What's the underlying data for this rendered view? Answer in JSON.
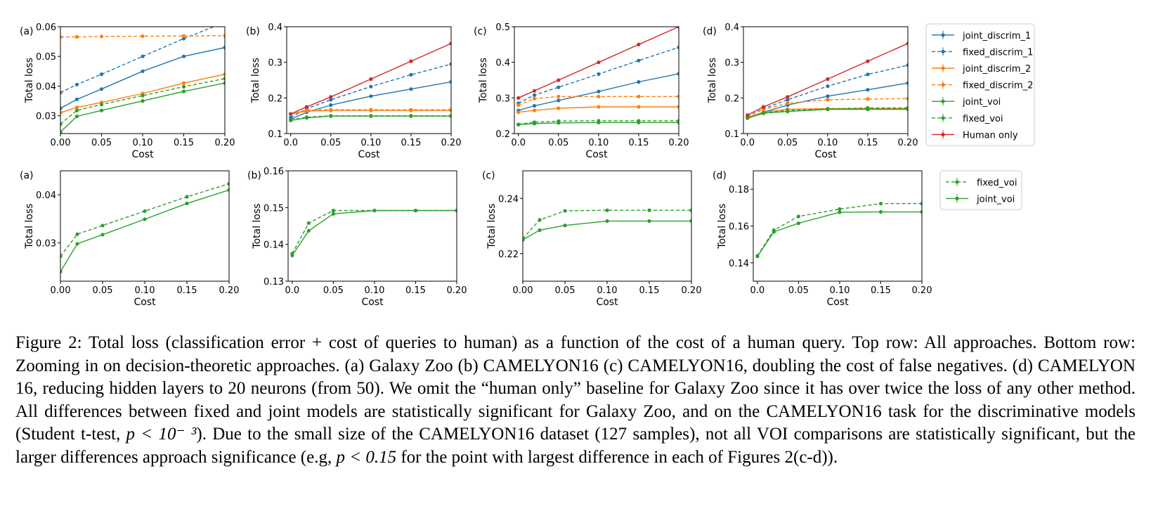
{
  "figure": {
    "colors": {
      "joint_discrim_1": "#1f77b4",
      "fixed_discrim_1": "#1f77b4",
      "joint_discrim_2": "#ff7f0e",
      "fixed_discrim_2": "#ff7f0e",
      "joint_voi": "#2ca02c",
      "fixed_voi": "#2ca02c",
      "human_only": "#d62728"
    },
    "top_legend": [
      {
        "key": "joint_discrim_1",
        "label": "joint_discrim_1",
        "dashed": false
      },
      {
        "key": "fixed_discrim_1",
        "label": "fixed_discrim_1",
        "dashed": true
      },
      {
        "key": "joint_discrim_2",
        "label": "joint_discrim_2",
        "dashed": false
      },
      {
        "key": "fixed_discrim_2",
        "label": "fixed_discrim_2",
        "dashed": true
      },
      {
        "key": "joint_voi",
        "label": "joint_voi",
        "dashed": false
      },
      {
        "key": "fixed_voi",
        "label": "fixed_voi",
        "dashed": true
      },
      {
        "key": "human_only",
        "label": "Human only",
        "dashed": false
      }
    ],
    "bottom_legend": [
      {
        "key": "fixed_voi",
        "label": "fixed_voi",
        "dashed": true
      },
      {
        "key": "joint_voi",
        "label": "joint_voi",
        "dashed": false
      }
    ]
  },
  "chart_data": [
    {
      "type": "line",
      "panel": "(a)",
      "row": "top",
      "xlabel": "Cost",
      "ylabel": "Total loss",
      "xlim": [
        0.0,
        0.2
      ],
      "ylim": [
        0.024,
        0.06
      ],
      "xticks": [
        "0.00",
        "0.05",
        "0.10",
        "0.15",
        "0.20"
      ],
      "yticks": [
        "0.03",
        "0.04",
        "0.05",
        "0.06"
      ],
      "x": [
        0.0,
        0.02,
        0.05,
        0.1,
        0.15,
        0.2
      ],
      "series": [
        {
          "key": "joint_discrim_1",
          "dashed": false,
          "values": [
            0.0325,
            0.0355,
            0.039,
            0.045,
            0.05,
            0.053
          ]
        },
        {
          "key": "fixed_discrim_1",
          "dashed": true,
          "values": [
            0.0378,
            0.0405,
            0.044,
            0.05,
            0.056,
            0.0615
          ]
        },
        {
          "key": "joint_discrim_2",
          "dashed": false,
          "values": [
            0.031,
            0.0328,
            0.0345,
            0.0375,
            0.041,
            0.044
          ]
        },
        {
          "key": "fixed_discrim_2",
          "dashed": true,
          "values": [
            0.0565,
            0.0566,
            0.0567,
            0.0568,
            0.0569,
            0.057
          ]
        },
        {
          "key": "joint_voi",
          "dashed": false,
          "values": [
            0.0245,
            0.0298,
            0.0318,
            0.035,
            0.0382,
            0.041
          ]
        },
        {
          "key": "fixed_voi",
          "dashed": true,
          "values": [
            0.0272,
            0.0318,
            0.0338,
            0.0368,
            0.0398,
            0.0425
          ]
        }
      ]
    },
    {
      "type": "line",
      "panel": "(b)",
      "row": "top",
      "xlabel": "Cost",
      "ylabel": "Total loss",
      "xlim": [
        -0.005,
        0.2
      ],
      "ylim": [
        0.1,
        0.4
      ],
      "xticks": [
        "0.0",
        "0.05",
        "0.10",
        "0.15",
        "0.20"
      ],
      "yticks": [
        "0.1",
        "0.2",
        "0.3",
        "0.4"
      ],
      "x": [
        0.0,
        0.02,
        0.05,
        0.1,
        0.15,
        0.2
      ],
      "series": [
        {
          "key": "joint_discrim_1",
          "dashed": false,
          "values": [
            0.14,
            0.16,
            0.18,
            0.205,
            0.225,
            0.245
          ]
        },
        {
          "key": "fixed_discrim_1",
          "dashed": true,
          "values": [
            0.145,
            0.17,
            0.195,
            0.232,
            0.265,
            0.295
          ]
        },
        {
          "key": "joint_discrim_2",
          "dashed": false,
          "values": [
            0.155,
            0.163,
            0.165,
            0.165,
            0.165,
            0.165
          ]
        },
        {
          "key": "fixed_discrim_2",
          "dashed": true,
          "values": [
            0.155,
            0.166,
            0.167,
            0.167,
            0.167,
            0.167
          ]
        },
        {
          "key": "joint_voi",
          "dashed": false,
          "values": [
            0.137,
            0.144,
            0.149,
            0.149,
            0.149,
            0.149
          ]
        },
        {
          "key": "fixed_voi",
          "dashed": true,
          "values": [
            0.138,
            0.146,
            0.15,
            0.15,
            0.15,
            0.15
          ]
        },
        {
          "key": "human_only",
          "dashed": false,
          "values": [
            0.155,
            0.175,
            0.203,
            0.253,
            0.303,
            0.353
          ]
        }
      ]
    },
    {
      "type": "line",
      "panel": "(c)",
      "row": "top",
      "xlabel": "Cost",
      "ylabel": "Total loss",
      "xlim": [
        -0.005,
        0.2
      ],
      "ylim": [
        0.2,
        0.5
      ],
      "xticks": [
        "0.0",
        "0.05",
        "0.10",
        "0.15",
        "0.20"
      ],
      "yticks": [
        "0.2",
        "0.3",
        "0.4",
        "0.5"
      ],
      "x": [
        0.0,
        0.02,
        0.05,
        0.1,
        0.15,
        0.2
      ],
      "series": [
        {
          "key": "joint_discrim_1",
          "dashed": false,
          "values": [
            0.265,
            0.278,
            0.293,
            0.318,
            0.345,
            0.368
          ]
        },
        {
          "key": "fixed_discrim_1",
          "dashed": true,
          "values": [
            0.285,
            0.308,
            0.33,
            0.367,
            0.405,
            0.442
          ]
        },
        {
          "key": "joint_discrim_2",
          "dashed": false,
          "values": [
            0.26,
            0.265,
            0.271,
            0.275,
            0.275,
            0.275
          ]
        },
        {
          "key": "fixed_discrim_2",
          "dashed": true,
          "values": [
            0.28,
            0.298,
            0.304,
            0.304,
            0.304,
            0.304
          ]
        },
        {
          "key": "joint_voi",
          "dashed": false,
          "values": [
            0.225,
            0.228,
            0.23,
            0.231,
            0.231,
            0.231
          ]
        },
        {
          "key": "fixed_voi",
          "dashed": true,
          "values": [
            0.226,
            0.232,
            0.235,
            0.236,
            0.236,
            0.236
          ]
        },
        {
          "key": "human_only",
          "dashed": false,
          "values": [
            0.3,
            0.32,
            0.35,
            0.4,
            0.45,
            0.5
          ]
        }
      ]
    },
    {
      "type": "line",
      "panel": "(d)",
      "row": "top",
      "xlabel": "Cost",
      "ylabel": "Total loss",
      "xlim": [
        -0.005,
        0.2
      ],
      "ylim": [
        0.1,
        0.4
      ],
      "xticks": [
        "0.0",
        "0.05",
        "0.10",
        "0.15",
        "0.20"
      ],
      "yticks": [
        "0.1",
        "0.2",
        "0.3",
        "0.4"
      ],
      "x": [
        0.0,
        0.02,
        0.05,
        0.1,
        0.15,
        0.2
      ],
      "series": [
        {
          "key": "joint_discrim_1",
          "dashed": false,
          "values": [
            0.145,
            0.16,
            0.18,
            0.205,
            0.223,
            0.242
          ]
        },
        {
          "key": "fixed_discrim_1",
          "dashed": true,
          "values": [
            0.148,
            0.17,
            0.195,
            0.233,
            0.266,
            0.292
          ]
        },
        {
          "key": "joint_discrim_2",
          "dashed": false,
          "values": [
            0.145,
            0.16,
            0.168,
            0.17,
            0.17,
            0.17
          ]
        },
        {
          "key": "fixed_discrim_2",
          "dashed": true,
          "values": [
            0.148,
            0.168,
            0.185,
            0.195,
            0.197,
            0.198
          ]
        },
        {
          "key": "joint_voi",
          "dashed": false,
          "values": [
            0.143,
            0.157,
            0.162,
            0.168,
            0.168,
            0.168
          ]
        },
        {
          "key": "fixed_voi",
          "dashed": true,
          "values": [
            0.144,
            0.158,
            0.165,
            0.169,
            0.172,
            0.172
          ]
        },
        {
          "key": "human_only",
          "dashed": false,
          "values": [
            0.152,
            0.175,
            0.203,
            0.253,
            0.303,
            0.353
          ]
        }
      ]
    },
    {
      "type": "line",
      "panel": "(a)",
      "row": "bottom",
      "xlabel": "Cost",
      "ylabel": "Total loss",
      "xlim": [
        0.0,
        0.2
      ],
      "ylim": [
        0.022,
        0.045
      ],
      "xticks": [
        "0.00",
        "0.05",
        "0.10",
        "0.15",
        "0.20"
      ],
      "yticks": [
        "0.03",
        "0.04"
      ],
      "x": [
        0.0,
        0.02,
        0.05,
        0.1,
        0.15,
        0.2
      ],
      "series": [
        {
          "key": "fixed_voi",
          "dashed": true,
          "values": [
            0.0272,
            0.0318,
            0.0336,
            0.0366,
            0.0396,
            0.0423
          ]
        },
        {
          "key": "joint_voi",
          "dashed": false,
          "values": [
            0.024,
            0.0298,
            0.0317,
            0.0349,
            0.0382,
            0.041
          ]
        }
      ]
    },
    {
      "type": "line",
      "panel": "(b)",
      "row": "bottom",
      "xlabel": "Cost",
      "ylabel": "Total loss",
      "xlim": [
        -0.005,
        0.2
      ],
      "ylim": [
        0.13,
        0.16
      ],
      "xticks": [
        "0.0",
        "0.05",
        "0.10",
        "0.15",
        "0.20"
      ],
      "yticks": [
        "0.13",
        "0.14",
        "0.15",
        "0.16"
      ],
      "x": [
        0.0,
        0.02,
        0.05,
        0.1,
        0.15,
        0.2
      ],
      "series": [
        {
          "key": "fixed_voi",
          "dashed": true,
          "values": [
            0.1375,
            0.1458,
            0.1492,
            0.1492,
            0.1492,
            0.1492
          ]
        },
        {
          "key": "joint_voi",
          "dashed": false,
          "values": [
            0.137,
            0.1437,
            0.1483,
            0.1492,
            0.1492,
            0.1492
          ]
        }
      ]
    },
    {
      "type": "line",
      "panel": "(c)",
      "row": "bottom",
      "xlabel": "Cost",
      "ylabel": "Total loss",
      "xlim": [
        0.0,
        0.2
      ],
      "ylim": [
        0.21,
        0.25
      ],
      "xticks": [
        "0.00",
        "0.05",
        "0.10",
        "0.15",
        "0.20"
      ],
      "yticks": [
        "0.22",
        "0.24"
      ],
      "x": [
        0.0,
        0.02,
        0.05,
        0.1,
        0.15,
        0.2
      ],
      "series": [
        {
          "key": "fixed_voi",
          "dashed": true,
          "values": [
            0.2255,
            0.2322,
            0.2355,
            0.2357,
            0.2357,
            0.2357
          ]
        },
        {
          "key": "joint_voi",
          "dashed": false,
          "values": [
            0.225,
            0.2285,
            0.2302,
            0.2318,
            0.2318,
            0.2318
          ]
        }
      ]
    },
    {
      "type": "line",
      "panel": "(d)",
      "row": "bottom",
      "xlabel": "Cost",
      "ylabel": "Total loss",
      "xlim": [
        -0.005,
        0.2
      ],
      "ylim": [
        0.13,
        0.19
      ],
      "xticks": [
        "0.0",
        "0.05",
        "0.10",
        "0.15",
        "0.20"
      ],
      "yticks": [
        "0.14",
        "0.16",
        "0.18"
      ],
      "x": [
        0.0,
        0.02,
        0.05,
        0.1,
        0.15,
        0.2
      ],
      "series": [
        {
          "key": "fixed_voi",
          "dashed": true,
          "values": [
            0.1438,
            0.1578,
            0.1652,
            0.1692,
            0.1722,
            0.1722
          ]
        },
        {
          "key": "joint_voi",
          "dashed": false,
          "values": [
            0.1435,
            0.1568,
            0.1615,
            0.1675,
            0.1677,
            0.1677
          ]
        }
      ]
    }
  ],
  "caption": {
    "label": "Figure 2:",
    "text_1": " Total loss (classification error + cost of queries to human) as a function of the cost of a human query. Top row: All approaches. Bottom row: Zooming in on decision-theoretic approaches. (a) Galaxy Zoo (b) CAMELYON16 (c) CAMELYON16, doubling the cost of false negatives. (d) CAMELYON 16, reducing hidden layers to 20 neurons (from 50). We omit the “human only” baseline for Galaxy Zoo since it has over twice the loss of any other method. All differences between fixed and joint models are statistically significant for Galaxy Zoo, and on the CAMELYON16 task for the discriminative models (Student t-test, ",
    "math_1": "p < 10⁻ ³",
    "text_2": "). Due to the small size of the CAMELYON16 dataset (127 samples), not all VOI comparisons are statistically significant, but the larger differences approach significance (e.g, ",
    "math_2": "p < 0.15",
    "text_3": " for the point with largest difference in each of Figures 2(c-d))."
  }
}
